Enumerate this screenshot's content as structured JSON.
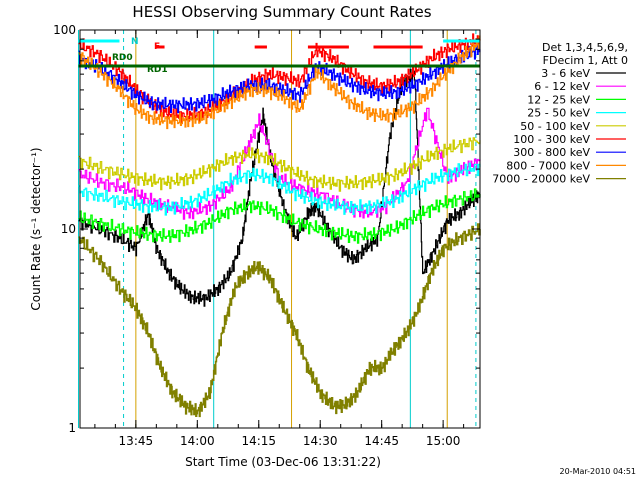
{
  "chart_data": {
    "type": "line",
    "title": "HESSI Observing Summary Count Rates",
    "xlabel": "Start Time (03-Dec-06 13:31:22)",
    "ylabel": "Count Rate (s⁻¹ detector⁻¹)",
    "y_scale": "log",
    "ylim": [
      1,
      100
    ],
    "xlim": [
      "13:31:22",
      "15:09:00"
    ],
    "x_ticks": [
      "13:45",
      "14:00",
      "14:15",
      "14:30",
      "14:45",
      "15:00"
    ],
    "y_ticks": [
      "1",
      "10",
      "100"
    ],
    "legend_position": "right",
    "legend_header": [
      "Det 1,3,4,5,6,9,",
      "FDecim 1, Att 0"
    ],
    "series": [
      {
        "name": "3 - 6 keV",
        "color": "#000000",
        "x": [
          "13:31",
          "13:36",
          "13:41",
          "13:45",
          "13:48",
          "13:50",
          "13:53",
          "13:56",
          "13:59",
          "14:02",
          "14:05",
          "14:08",
          "14:11",
          "14:13",
          "14:16",
          "14:18",
          "14:21",
          "14:24",
          "14:27",
          "14:29",
          "14:32",
          "14:35",
          "14:38",
          "14:41",
          "14:44",
          "14:47",
          "14:50",
          "14:53",
          "14:55",
          "14:58",
          "15:01",
          "15:04",
          "15:07",
          "15:09"
        ],
        "values": [
          11,
          10,
          9,
          8,
          12,
          8,
          6,
          5,
          4.5,
          4.5,
          5,
          6,
          9,
          18,
          38,
          22,
          13,
          9,
          12,
          13,
          10,
          8,
          7,
          8,
          9,
          30,
          55,
          60,
          6,
          8,
          11,
          12,
          14,
          15
        ]
      },
      {
        "name": "6 - 12 keV",
        "color": "#ff00ff",
        "x": [
          "13:31",
          "13:37",
          "13:43",
          "13:48",
          "13:53",
          "13:58",
          "14:03",
          "14:08",
          "14:12",
          "14:15",
          "14:20",
          "14:25",
          "14:30",
          "14:36",
          "14:41",
          "14:46",
          "14:51",
          "14:56",
          "15:01",
          "15:05",
          "15:09"
        ],
        "values": [
          19,
          17,
          16,
          14,
          13,
          12,
          13,
          16,
          25,
          35,
          18,
          16,
          15,
          13,
          12,
          13,
          17,
          40,
          18,
          20,
          22
        ]
      },
      {
        "name": "12 - 25 keV",
        "color": "#00ff00",
        "x": [
          "13:31",
          "13:37",
          "13:43",
          "13:48",
          "13:53",
          "13:58",
          "14:03",
          "14:08",
          "14:13",
          "14:18",
          "14:23",
          "14:28",
          "14:33",
          "14:38",
          "14:43",
          "14:48",
          "14:53",
          "14:58",
          "15:03",
          "15:09"
        ],
        "values": [
          11.5,
          10.5,
          9.8,
          9.4,
          9.2,
          9.8,
          10.8,
          12.5,
          13.2,
          12.5,
          11,
          10.2,
          9.6,
          9.2,
          9.4,
          10,
          11.5,
          13,
          14,
          15
        ]
      },
      {
        "name": "25 - 50 keV",
        "color": "#00ffff",
        "x": [
          "13:31",
          "13:37",
          "13:43",
          "13:48",
          "13:53",
          "13:58",
          "14:03",
          "14:08",
          "14:13",
          "14:18",
          "14:23",
          "14:28",
          "14:33",
          "14:38",
          "14:43",
          "14:48",
          "14:53",
          "14:58",
          "15:03",
          "15:09"
        ],
        "values": [
          15.5,
          14.5,
          13.5,
          13,
          12.8,
          13.5,
          15,
          17.5,
          19,
          18,
          15.5,
          14,
          13.2,
          12.8,
          13,
          14,
          16,
          18,
          19.5,
          20.5
        ]
      },
      {
        "name": "50 - 100 keV",
        "color": "#cccc00",
        "x": [
          "13:31",
          "13:37",
          "13:43",
          "13:48",
          "13:53",
          "13:58",
          "14:03",
          "14:08",
          "14:13",
          "14:18",
          "14:23",
          "14:28",
          "14:33",
          "14:38",
          "14:43",
          "14:48",
          "14:53",
          "14:58",
          "15:03",
          "15:09"
        ],
        "values": [
          22,
          20,
          18.5,
          17.5,
          17.2,
          18,
          20,
          22.5,
          24,
          22.5,
          19.5,
          17.5,
          17,
          17,
          17.5,
          18.5,
          21,
          24,
          26,
          28
        ]
      },
      {
        "name": "100 - 300 keV",
        "color": "#ff0000",
        "x": [
          "13:31",
          "13:36",
          "13:41",
          "13:45",
          "13:49",
          "13:53",
          "13:57",
          "14:01",
          "14:05",
          "14:09",
          "14:13",
          "14:17",
          "14:21",
          "14:25",
          "14:29",
          "14:33",
          "14:37",
          "14:41",
          "14:45",
          "14:49",
          "14:53",
          "14:57",
          "15:01",
          "15:05",
          "15:09"
        ],
        "values": [
          85,
          75,
          62,
          50,
          42,
          38,
          37,
          38,
          42,
          48,
          55,
          60,
          58,
          55,
          80,
          72,
          62,
          55,
          52,
          55,
          62,
          72,
          80,
          85,
          90
        ]
      },
      {
        "name": "300 - 800 keV",
        "color": "#0000ff",
        "x": [
          "13:31",
          "13:36",
          "13:41",
          "13:45",
          "13:49",
          "13:53",
          "13:57",
          "14:01",
          "14:05",
          "14:09",
          "14:13",
          "14:17",
          "14:21",
          "14:25",
          "14:29",
          "14:33",
          "14:37",
          "14:41",
          "14:45",
          "14:49",
          "14:53",
          "14:57",
          "15:01",
          "15:05",
          "15:09"
        ],
        "values": [
          72,
          65,
          55,
          47,
          43,
          42,
          42,
          43,
          46,
          50,
          53,
          53,
          50,
          47,
          66,
          60,
          54,
          50,
          48,
          49,
          53,
          60,
          68,
          74,
          80
        ]
      },
      {
        "name": "800 - 7000 keV",
        "color": "#ff8800",
        "x": [
          "13:31",
          "13:36",
          "13:41",
          "13:45",
          "13:49",
          "13:53",
          "13:57",
          "14:01",
          "14:05",
          "14:09",
          "14:13",
          "14:17",
          "14:21",
          "14:25",
          "14:29",
          "14:33",
          "14:37",
          "14:41",
          "14:45",
          "14:49",
          "14:53",
          "14:57",
          "15:01",
          "15:05",
          "15:09"
        ],
        "values": [
          75,
          62,
          50,
          40,
          36,
          35,
          35,
          36,
          40,
          45,
          50,
          50,
          46,
          40,
          62,
          52,
          44,
          39,
          37,
          38,
          42,
          50,
          62,
          75,
          88
        ]
      },
      {
        "name": "7000 - 20000 keV",
        "color": "#808000",
        "x": [
          "13:31",
          "13:36",
          "13:41",
          "13:45",
          "13:48",
          "13:51",
          "13:54",
          "13:57",
          "14:00",
          "14:03",
          "14:06",
          "14:09",
          "14:12",
          "14:15",
          "14:18",
          "14:21",
          "14:24",
          "14:27",
          "14:30",
          "14:33",
          "14:36",
          "14:39",
          "14:42",
          "14:45",
          "14:48",
          "14:51",
          "14:54",
          "14:57",
          "15:00",
          "15:04",
          "15:09"
        ],
        "values": [
          9,
          7,
          5,
          4,
          3,
          2,
          1.5,
          1.3,
          1.2,
          1.5,
          3,
          5,
          6,
          6.5,
          5.5,
          4,
          3,
          2,
          1.5,
          1.3,
          1.3,
          1.5,
          2,
          2,
          2.5,
          3,
          4,
          6,
          8,
          9,
          10
        ]
      }
    ],
    "flag_bars": [
      {
        "label": "N",
        "color": "#00ffff",
        "start": "13:31",
        "end": "13:41"
      },
      {
        "label": "N",
        "color": "#00ffff",
        "start": "15:00",
        "end": "15:09"
      },
      {
        "label": "F",
        "color": "#ff0000",
        "start": "13:50",
        "end": "13:52"
      },
      {
        "label": "",
        "color": "#ff0000",
        "start": "14:14",
        "end": "14:17"
      },
      {
        "label": "",
        "color": "#ff0000",
        "start": "14:27",
        "end": "14:37"
      },
      {
        "label": "",
        "color": "#ff0000",
        "start": "14:43",
        "end": "14:55"
      },
      {
        "label": "RD0",
        "color": "#006400",
        "start": "13:31",
        "end": "15:09"
      }
    ],
    "flag_labels": [
      "N",
      "F",
      "RD0",
      "RD1"
    ],
    "vlines_dashed": [
      "13:42",
      "15:08"
    ],
    "vlines_solid": [
      "13:31",
      "13:45",
      "14:04",
      "14:23",
      "14:52",
      "15:01"
    ],
    "timestamp": "20-Mar-2010 04:51"
  }
}
